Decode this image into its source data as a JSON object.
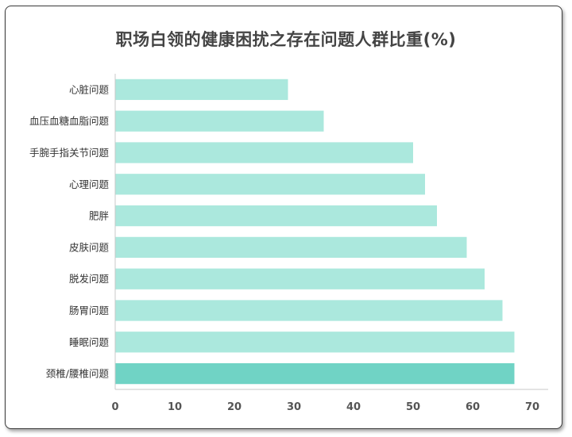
{
  "chart_data": {
    "type": "bar",
    "orientation": "horizontal",
    "title": "职场白领的健康困扰之存在问题人群比重(%)",
    "categories": [
      "心脏问题",
      "血压血糖血脂问题",
      "手腕手指关节问题",
      "心理问题",
      "肥胖",
      "皮肤问题",
      "脱发问题",
      "肠胃问题",
      "睡眠问题",
      "颈椎/腰椎问题"
    ],
    "values": [
      29,
      35,
      50,
      52,
      54,
      59,
      62,
      65,
      67,
      67
    ],
    "highlight_index": 9,
    "xlim": [
      0,
      70
    ],
    "xticks": [
      "0",
      "10",
      "20",
      "30",
      "40",
      "50",
      "60",
      "70"
    ],
    "grid": false,
    "legend": "none",
    "colors": {
      "bar": "#ABE8DD",
      "highlight": "#70D3C5",
      "axis": "#C8C8C8"
    }
  }
}
